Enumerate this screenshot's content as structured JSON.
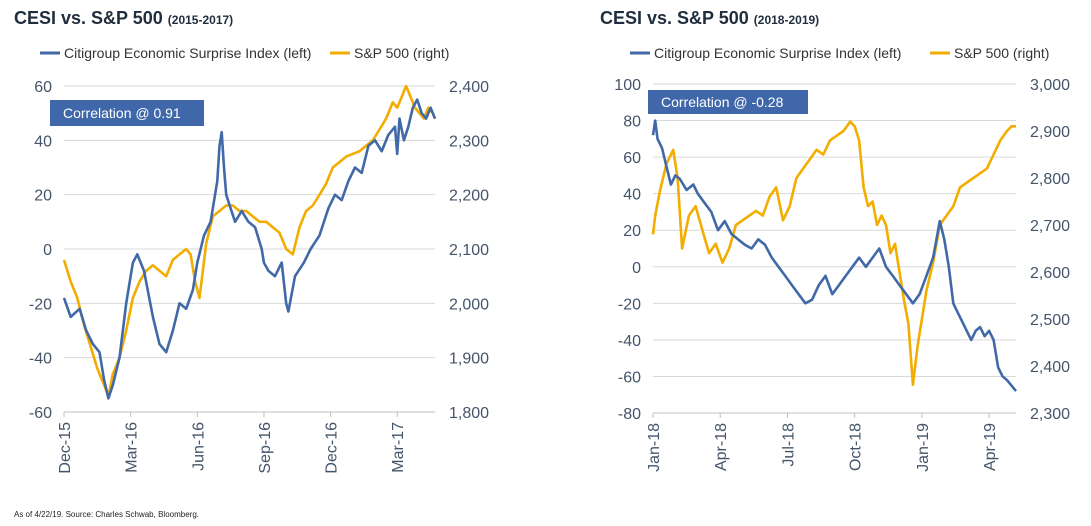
{
  "footer": "As of 4/22/19. Source: Charles Schwab, Bloomberg.",
  "colors": {
    "cesi": "#4169a8",
    "spx": "#f2ad00",
    "correlation_box": "#3f67a9",
    "grid": "#d9d9d9",
    "tick_text": "#44546a"
  },
  "chart_data": [
    {
      "type": "line",
      "title": "CESI vs. S&P 500",
      "subtitle": "(2015-2017)",
      "legend": [
        "Citigroup Economic Surprise Index (left)",
        "S&P 500 (right)"
      ],
      "annotation": "Correlation @ 0.91",
      "y_left": {
        "min": -60,
        "max": 60,
        "ticks": [
          60,
          40,
          20,
          0,
          -20,
          -40,
          -60
        ],
        "tick_labels": [
          "60",
          "40",
          "20",
          "0",
          "-20",
          "-40",
          "-60"
        ]
      },
      "y_right": {
        "min": 1800,
        "max": 2400,
        "ticks": [
          2400,
          2300,
          2200,
          2100,
          2000,
          1900,
          1800
        ],
        "tick_labels": [
          "2,400",
          "2,300",
          "2,200",
          "2,100",
          "2,000",
          "1,900",
          "1,800"
        ]
      },
      "x_labels": [
        "Dec-15",
        "Mar-16",
        "Jun-16",
        "Sep-16",
        "Dec-16",
        "Mar-17"
      ],
      "x_tick_months": [
        0,
        3,
        6,
        9,
        12,
        15
      ],
      "x_range_months": [
        0,
        16.7
      ],
      "grid": "horizontal",
      "series": [
        {
          "name": "Citigroup Economic Surprise Index (left)",
          "axis": "left",
          "months": [
            0,
            0.3,
            0.7,
            1.0,
            1.3,
            1.6,
            1.8,
            2.0,
            2.2,
            2.5,
            2.8,
            3.1,
            3.3,
            3.6,
            4.0,
            4.3,
            4.6,
            4.9,
            5.2,
            5.5,
            5.8,
            6.0,
            6.3,
            6.6,
            6.9,
            7.0,
            7.1,
            7.2,
            7.3,
            7.5,
            7.7,
            8.0,
            8.3,
            8.6,
            8.9,
            9.0,
            9.2,
            9.5,
            9.8,
            10.0,
            10.1,
            10.4,
            10.8,
            11.1,
            11.5,
            11.9,
            12.2,
            12.5,
            12.8,
            13.1,
            13.4,
            13.7,
            14.0,
            14.3,
            14.6,
            14.9,
            15.0,
            15.1,
            15.3,
            15.5,
            15.7,
            15.9,
            16.1,
            16.3,
            16.5,
            16.7
          ],
          "values": [
            -18,
            -25,
            -22,
            -30,
            -35,
            -38,
            -48,
            -55,
            -50,
            -40,
            -20,
            -5,
            -2,
            -8,
            -25,
            -35,
            -38,
            -30,
            -20,
            -22,
            -15,
            -5,
            5,
            10,
            25,
            38,
            43,
            30,
            20,
            15,
            10,
            14,
            10,
            8,
            0,
            -5,
            -8,
            -10,
            -5,
            -20,
            -23,
            -10,
            -5,
            0,
            5,
            15,
            20,
            18,
            25,
            30,
            28,
            38,
            40,
            36,
            42,
            45,
            35,
            48,
            40,
            45,
            52,
            55,
            50,
            48,
            52,
            48
          ]
        },
        {
          "name": "S&P 500 (right)",
          "axis": "right",
          "months": [
            0,
            0.3,
            0.6,
            0.9,
            1.2,
            1.5,
            1.8,
            2.0,
            2.2,
            2.5,
            2.8,
            3.1,
            3.4,
            3.7,
            4.0,
            4.3,
            4.6,
            4.9,
            5.2,
            5.5,
            5.7,
            5.9,
            6.1,
            6.4,
            6.7,
            7.0,
            7.3,
            7.6,
            7.9,
            8.2,
            8.5,
            8.8,
            9.1,
            9.4,
            9.7,
            10.0,
            10.3,
            10.6,
            10.9,
            11.2,
            11.5,
            11.8,
            12.1,
            12.4,
            12.7,
            13.0,
            13.3,
            13.6,
            13.9,
            14.2,
            14.5,
            14.8,
            15.0,
            15.2,
            15.4,
            15.6,
            15.8,
            16.0,
            16.2,
            16.4,
            16.6,
            16.7
          ],
          "values": [
            2080,
            2040,
            2010,
            1960,
            1920,
            1880,
            1850,
            1830,
            1870,
            1900,
            1950,
            2010,
            2040,
            2060,
            2070,
            2060,
            2050,
            2080,
            2090,
            2100,
            2090,
            2040,
            2010,
            2110,
            2160,
            2170,
            2180,
            2180,
            2170,
            2170,
            2160,
            2150,
            2150,
            2140,
            2130,
            2100,
            2090,
            2140,
            2170,
            2180,
            2200,
            2220,
            2250,
            2260,
            2270,
            2275,
            2280,
            2290,
            2300,
            2320,
            2340,
            2370,
            2360,
            2380,
            2400,
            2380,
            2360,
            2350,
            2340,
            2360,
            2350,
            2340
          ]
        }
      ]
    },
    {
      "type": "line",
      "title": "CESI vs. S&P 500",
      "subtitle": "(2018-2019)",
      "legend": [
        "Citigroup Economic Surprise Index (left)",
        "S&P 500 (right)"
      ],
      "annotation": "Correlation @ -0.28",
      "y_left": {
        "min": -80,
        "max": 100,
        "ticks": [
          100,
          80,
          60,
          40,
          20,
          0,
          -20,
          -40,
          -60,
          -80
        ],
        "tick_labels": [
          "100",
          "80",
          "60",
          "40",
          "20",
          "0",
          "-20",
          "-40",
          "-60",
          "-80"
        ]
      },
      "y_right": {
        "min": 2300,
        "max": 3000,
        "ticks": [
          3000,
          2900,
          2800,
          2700,
          2600,
          2500,
          2400,
          2300
        ],
        "tick_labels": [
          "3,000",
          "2,900",
          "2,800",
          "2,700",
          "2,600",
          "2,500",
          "2,400",
          "2,300"
        ]
      },
      "x_labels": [
        "Jan-18",
        "Apr-18",
        "Jul-18",
        "Oct-18",
        "Jan-19",
        "Apr-19"
      ],
      "x_tick_months": [
        0,
        3,
        6,
        9,
        12,
        15
      ],
      "x_range_months": [
        0,
        16.2
      ],
      "grid": "horizontal",
      "series": [
        {
          "name": "Citigroup Economic Surprise Index (left)",
          "axis": "left",
          "months": [
            0,
            0.1,
            0.2,
            0.4,
            0.6,
            0.8,
            1.0,
            1.2,
            1.5,
            1.8,
            2.0,
            2.3,
            2.6,
            2.9,
            3.2,
            3.5,
            3.8,
            4.1,
            4.4,
            4.7,
            5.0,
            5.3,
            5.6,
            5.9,
            6.2,
            6.5,
            6.8,
            7.1,
            7.4,
            7.7,
            8.0,
            8.3,
            8.6,
            8.9,
            9.2,
            9.5,
            9.8,
            10.1,
            10.4,
            10.7,
            11.0,
            11.3,
            11.6,
            11.9,
            12.2,
            12.5,
            12.8,
            13.0,
            13.2,
            13.4,
            13.6,
            13.8,
            14.0,
            14.2,
            14.4,
            14.6,
            14.8,
            15.0,
            15.2,
            15.4,
            15.6,
            15.8,
            16.0,
            16.2
          ],
          "values": [
            72,
            80,
            70,
            65,
            55,
            45,
            50,
            48,
            42,
            45,
            40,
            35,
            30,
            20,
            25,
            18,
            15,
            12,
            10,
            15,
            12,
            5,
            0,
            -5,
            -10,
            -15,
            -20,
            -18,
            -10,
            -5,
            -15,
            -10,
            -5,
            0,
            5,
            0,
            5,
            10,
            0,
            -5,
            -10,
            -15,
            -20,
            -15,
            -5,
            5,
            25,
            15,
            0,
            -20,
            -25,
            -30,
            -35,
            -40,
            -35,
            -33,
            -38,
            -35,
            -40,
            -55,
            -60,
            -62,
            -65,
            -68
          ]
        },
        {
          "name": "S&P 500 (right)",
          "axis": "right",
          "months": [
            0,
            0.1,
            0.3,
            0.6,
            0.9,
            1.1,
            1.3,
            1.6,
            1.9,
            2.2,
            2.5,
            2.8,
            3.1,
            3.4,
            3.7,
            4.0,
            4.3,
            4.6,
            4.9,
            5.2,
            5.5,
            5.8,
            6.1,
            6.4,
            6.7,
            7.0,
            7.3,
            7.6,
            7.9,
            8.2,
            8.5,
            8.8,
            9.0,
            9.2,
            9.4,
            9.6,
            9.8,
            10.0,
            10.2,
            10.4,
            10.6,
            10.8,
            11.0,
            11.2,
            11.4,
            11.6,
            11.8,
            12.0,
            12.2,
            12.5,
            12.8,
            13.1,
            13.4,
            13.7,
            14.0,
            14.3,
            14.6,
            14.9,
            15.2,
            15.5,
            15.8,
            16.0,
            16.2
          ],
          "values": [
            2680,
            2720,
            2770,
            2830,
            2860,
            2800,
            2650,
            2720,
            2740,
            2690,
            2640,
            2660,
            2620,
            2650,
            2700,
            2710,
            2720,
            2730,
            2720,
            2760,
            2780,
            2710,
            2740,
            2800,
            2820,
            2840,
            2860,
            2850,
            2880,
            2890,
            2900,
            2920,
            2910,
            2880,
            2780,
            2740,
            2750,
            2700,
            2720,
            2700,
            2640,
            2660,
            2600,
            2540,
            2490,
            2360,
            2440,
            2500,
            2560,
            2620,
            2700,
            2720,
            2740,
            2780,
            2790,
            2800,
            2810,
            2820,
            2850,
            2880,
            2900,
            2910,
            2910
          ]
        }
      ]
    }
  ]
}
